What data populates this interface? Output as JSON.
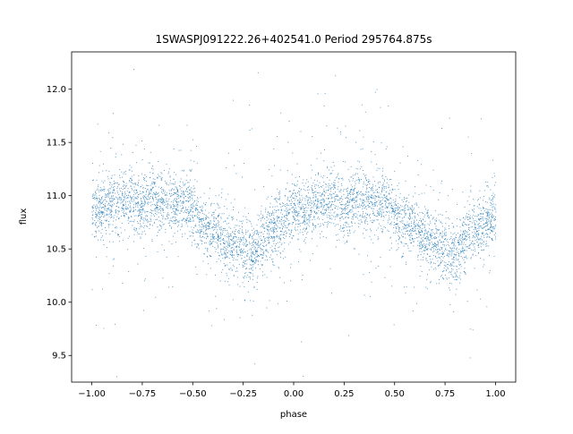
{
  "chart_data": {
    "type": "scatter",
    "title": "1SWASPJ091222.26+402541.0 Period 295764.875s",
    "xlabel": "phase",
    "ylabel": "flux",
    "xlim": [
      -1.1,
      1.1
    ],
    "ylim": [
      9.25,
      12.35
    ],
    "x_ticks": [
      -1.0,
      -0.75,
      -0.5,
      -0.25,
      0.0,
      0.25,
      0.5,
      0.75,
      1.0
    ],
    "x_tick_labels": [
      "−1.00",
      "−0.75",
      "−0.50",
      "−0.25",
      "0.00",
      "0.25",
      "0.50",
      "0.75",
      "1.00"
    ],
    "y_ticks": [
      9.5,
      10.0,
      10.5,
      11.0,
      11.5,
      12.0
    ],
    "y_tick_labels": [
      "9.5",
      "10.0",
      "10.5",
      "11.0",
      "11.5",
      "12.0"
    ],
    "grid": false,
    "marker_color": "#1f77b4",
    "series": [
      {
        "x": [
          -1.0,
          -0.9,
          -0.85,
          -0.8,
          -0.75,
          -0.7,
          -0.65,
          -0.6,
          -0.55,
          -0.5,
          -0.45,
          -0.4,
          -0.35,
          -0.3,
          -0.25,
          -0.2,
          -0.15,
          -0.1,
          -0.05,
          0.0,
          0.05,
          0.1,
          0.15,
          0.2,
          0.25,
          0.3,
          0.35,
          0.4,
          0.45,
          0.5,
          0.55,
          0.6,
          0.65,
          0.7,
          0.75,
          0.8,
          0.85,
          0.9,
          0.95,
          1.0
        ],
        "y": [
          10.85,
          10.95,
          10.95,
          10.95,
          10.88,
          10.98,
          10.95,
          10.92,
          10.95,
          10.85,
          10.72,
          10.68,
          10.6,
          10.55,
          10.5,
          10.45,
          10.62,
          10.7,
          10.75,
          10.85,
          10.82,
          10.92,
          10.95,
          10.95,
          10.88,
          10.98,
          10.95,
          10.92,
          10.95,
          10.85,
          10.72,
          10.68,
          10.6,
          10.55,
          10.5,
          10.45,
          10.62,
          10.7,
          10.75,
          10.85
        ]
      }
    ]
  }
}
